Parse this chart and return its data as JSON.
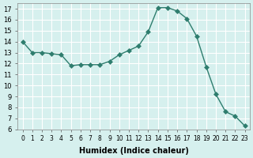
{
  "x": [
    0,
    1,
    2,
    3,
    4,
    5,
    6,
    7,
    8,
    9,
    10,
    11,
    12,
    13,
    14,
    15,
    16,
    17,
    18,
    19,
    20,
    21,
    22,
    23
  ],
  "y": [
    14.0,
    13.0,
    13.0,
    12.9,
    12.8,
    11.8,
    11.9,
    11.9,
    11.9,
    12.2,
    12.8,
    13.2,
    13.6,
    14.9,
    17.1,
    17.1,
    16.8,
    16.1,
    14.5,
    11.7,
    9.2,
    7.6,
    7.2,
    6.3
  ],
  "line_color": "#2e7d6e",
  "marker": "D",
  "marker_size": 3,
  "bg_color": "#d6f0ee",
  "grid_color": "#ffffff",
  "xlabel": "Humidex (Indice chaleur)",
  "xlim": [
    -0.5,
    23.5
  ],
  "ylim": [
    6,
    17.5
  ],
  "xticks": [
    0,
    1,
    2,
    3,
    4,
    5,
    6,
    7,
    8,
    9,
    10,
    11,
    12,
    13,
    14,
    15,
    16,
    17,
    18,
    19,
    20,
    21,
    22,
    23
  ],
  "yticks": [
    6,
    7,
    8,
    9,
    10,
    11,
    12,
    13,
    14,
    15,
    16,
    17
  ]
}
